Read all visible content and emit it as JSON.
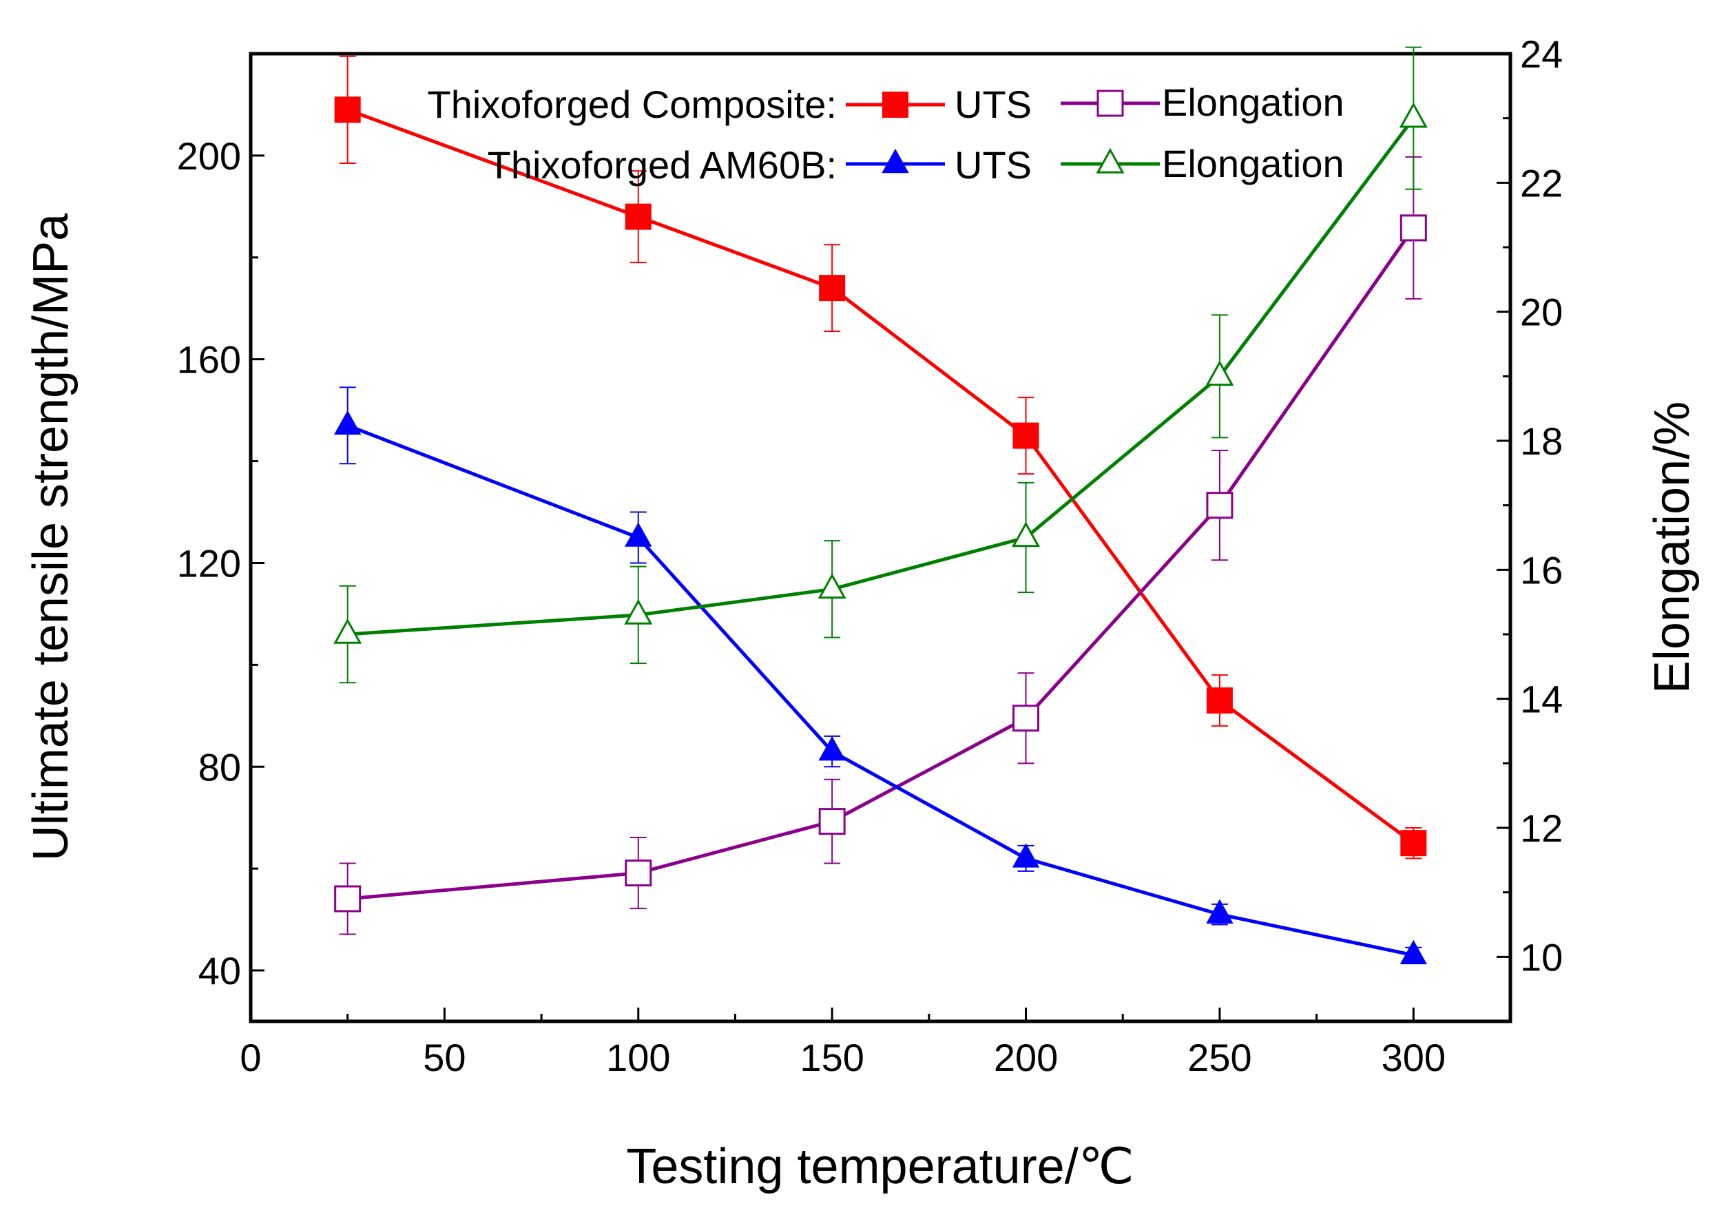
{
  "chart_data": {
    "type": "line",
    "title": "",
    "xlabel": "Testing temperature/℃",
    "ylabel": "Ultimate tensile strength/MPa",
    "y2label": "Elongation/%",
    "xlim": [
      0,
      325
    ],
    "ylim": [
      30,
      220
    ],
    "y2lim": [
      9,
      24
    ],
    "xticks": [
      0,
      50,
      100,
      150,
      200,
      250,
      300
    ],
    "yticks": [
      40,
      80,
      120,
      160,
      200
    ],
    "y2ticks": [
      10,
      12,
      14,
      16,
      18,
      20,
      22,
      24
    ],
    "x": [
      25,
      100,
      150,
      200,
      250,
      300
    ],
    "legend": {
      "group1_label": "Thixoforged Composite:",
      "group2_label": "Thixoforged AM60B:"
    },
    "series": [
      {
        "name": "UTS",
        "group": "Thixoforged Composite",
        "axis": "left",
        "marker": "square-filled",
        "color": "#ff0000",
        "values": [
          209,
          188,
          174,
          145,
          93,
          65
        ],
        "errors": [
          10.5,
          9,
          8.5,
          7.5,
          5,
          3
        ]
      },
      {
        "name": "Elongation",
        "group": "Thixoforged Composite",
        "axis": "right",
        "marker": "square-open",
        "color": "#8b008b",
        "values": [
          10.9,
          11.3,
          12.1,
          13.7,
          17,
          21.3
        ],
        "errors": [
          0.55,
          0.55,
          0.65,
          0.7,
          0.85,
          1.1
        ]
      },
      {
        "name": "UTS",
        "group": "Thixoforged AM60B",
        "axis": "left",
        "marker": "triangle-filled",
        "color": "#0000ff",
        "values": [
          147,
          125,
          83,
          62,
          51,
          43
        ],
        "errors": [
          7.5,
          5,
          3,
          2.5,
          2,
          1.5
        ]
      },
      {
        "name": "Elongation",
        "group": "Thixoforged AM60B",
        "axis": "right",
        "marker": "triangle-open",
        "color": "#008000",
        "values": [
          15,
          15.3,
          15.7,
          16.5,
          19,
          23
        ],
        "errors": [
          0.75,
          0.75,
          0.75,
          0.85,
          0.95,
          1.1
        ]
      }
    ]
  }
}
